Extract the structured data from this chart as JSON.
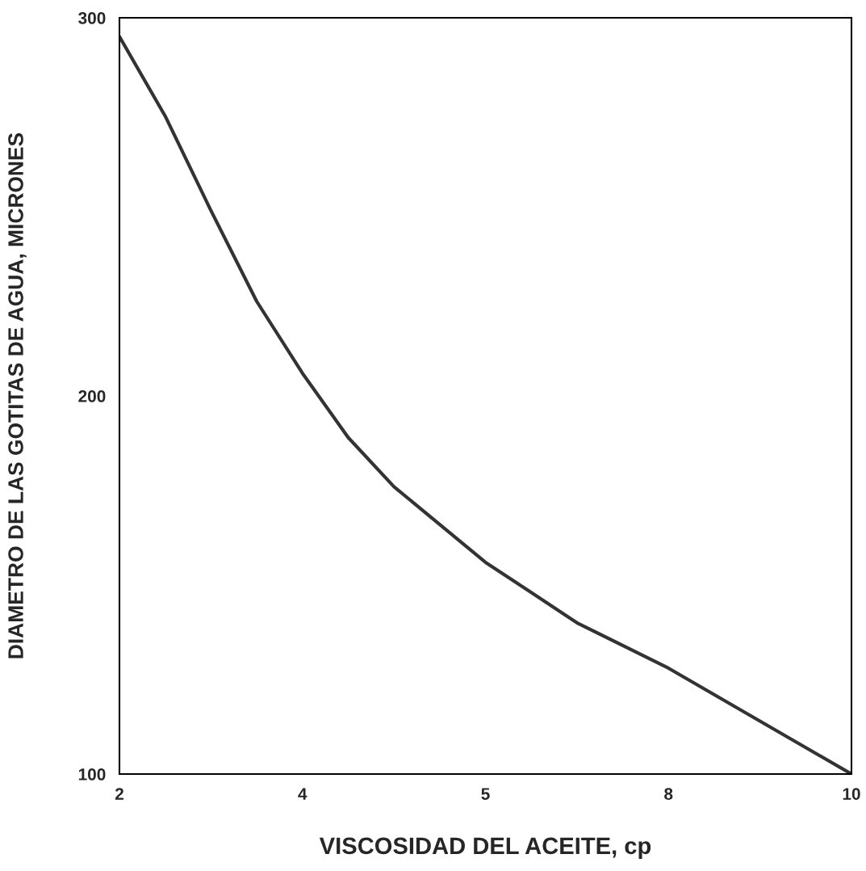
{
  "chart_data": {
    "type": "line",
    "xlabel": "VISCOSIDAD DEL ACEITE, cp",
    "ylabel": "DIAMETRO DE LAS GOTITAS DE AGUA, MICRONES",
    "categories": [
      "2",
      null,
      null,
      null,
      "4",
      null,
      null,
      null,
      "5",
      null,
      null,
      null,
      "8",
      null,
      null,
      null,
      "10"
    ],
    "series": [
      {
        "color": "#333333",
        "values": [
          295,
          274,
          249,
          225,
          206,
          189,
          176,
          166,
          156,
          148,
          140,
          134,
          128,
          121,
          114,
          107,
          100
        ]
      }
    ],
    "ylim": [
      100,
      300
    ],
    "yticks": [
      100,
      200,
      300
    ],
    "grid": false,
    "legend": false,
    "marker": "none",
    "line_style": "solid"
  }
}
